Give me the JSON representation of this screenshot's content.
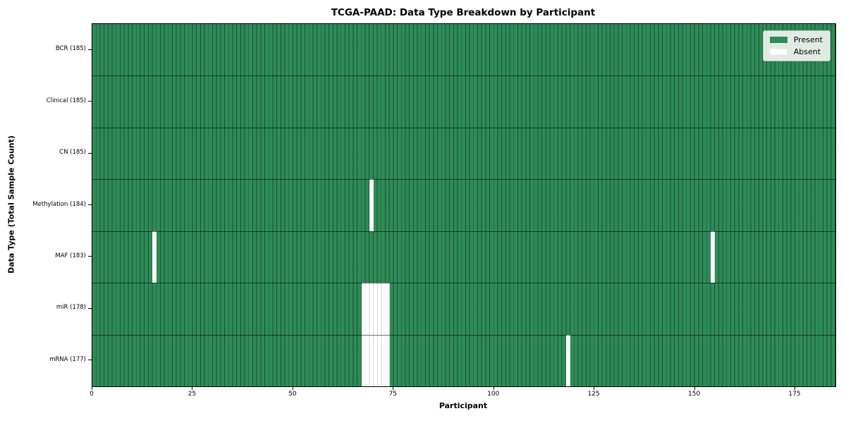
{
  "chart_data": {
    "type": "heatmap",
    "title": "TCGA-PAAD: Data Type Breakdown by Participant",
    "xlabel": "Participant",
    "ylabel": "Data Type (Total Sample Count)",
    "n_participants": 185,
    "x_ticks": [
      0,
      25,
      50,
      75,
      100,
      125,
      150,
      175
    ],
    "legend": {
      "position": "upper right",
      "entries": [
        {
          "label": "Present",
          "color": "#2e8b57"
        },
        {
          "label": "Absent",
          "color": "#ffffff"
        }
      ]
    },
    "rows": [
      {
        "name": "BCR",
        "label": "BCR (185)",
        "total_samples": 185,
        "absent_participants": []
      },
      {
        "name": "Clinical",
        "label": "Clinical (185)",
        "total_samples": 185,
        "absent_participants": []
      },
      {
        "name": "CN",
        "label": "CN (185)",
        "total_samples": 185,
        "absent_participants": []
      },
      {
        "name": "Methylation",
        "label": "Methylation (184)",
        "total_samples": 184,
        "absent_participants": [
          69
        ]
      },
      {
        "name": "MAF",
        "label": "MAF (183)",
        "total_samples": 183,
        "absent_participants": [
          15,
          154
        ]
      },
      {
        "name": "miR",
        "label": "miR (178)",
        "total_samples": 178,
        "absent_participants": [
          67,
          68,
          69,
          70,
          71,
          72,
          73
        ]
      },
      {
        "name": "mRNA",
        "label": "mRNA (177)",
        "total_samples": 177,
        "absent_participants": [
          67,
          68,
          69,
          70,
          71,
          72,
          73,
          118
        ]
      }
    ],
    "colors": {
      "present": "#2e8b57",
      "absent": "#ffffff",
      "cell_edge_on_green": "rgba(8,34,20,0.55)",
      "cell_edge_on_white": "rgba(0,0,0,0.16)",
      "row_divider": "rgba(0,0,0,0.55)",
      "plot_border": "#000000",
      "legend_background": "rgba(240,244,240,0.92)",
      "legend_border": "#b7bfb7"
    }
  }
}
